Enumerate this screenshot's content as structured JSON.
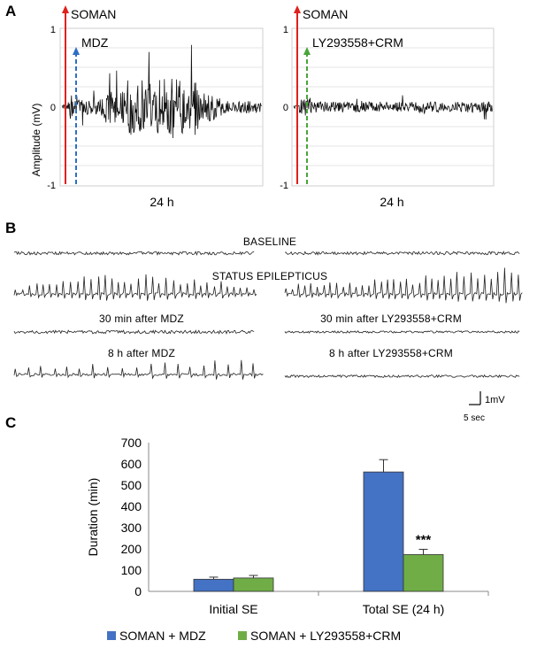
{
  "panels": {
    "a": {
      "letter": "A",
      "ylabel": "Amplitude (mV)",
      "left": {
        "agent": "SOMAN",
        "treatment": "MDZ",
        "time_label": "24 h",
        "treatment_color": "#2e6fc4"
      },
      "right": {
        "agent": "SOMAN",
        "treatment": "LY293558+CRM",
        "time_label": "24 h",
        "treatment_color": "#4aa43a"
      },
      "ticks": {
        "top": "1",
        "mid": "0",
        "bottom": "-1"
      },
      "soman_color": "#e0201c"
    },
    "b": {
      "letter": "B",
      "center_labels": {
        "baseline": "BASELINE",
        "se": "STATUS EPILEPTICUS"
      },
      "left_labels": {
        "post30": "30 min after MDZ",
        "post8h": "8 h after MDZ"
      },
      "right_labels": {
        "post30": "30 min after LY293558+CRM",
        "post8h": "8 h after LY293558+CRM"
      },
      "scale": {
        "amplitude": "1mV",
        "time": "5 sec"
      }
    },
    "c": {
      "letter": "C"
    }
  },
  "chart_data": {
    "type": "bar",
    "title": "",
    "xlabel": "",
    "ylabel": "Duration (min)",
    "ylim": [
      0,
      700
    ],
    "yticks": [
      "0",
      "100",
      "200",
      "300",
      "400",
      "500",
      "600",
      "700"
    ],
    "categories": [
      "Initial SE",
      "Total SE (24 h)"
    ],
    "series": [
      {
        "name": "SOMAN + MDZ",
        "color": "#4472c4",
        "values": [
          57,
          562
        ],
        "errors": [
          10,
          58
        ]
      },
      {
        "name": "SOMAN + LY293558+CRM",
        "color": "#70ad47",
        "values": [
          63,
          173
        ],
        "errors": [
          12,
          25
        ]
      }
    ],
    "annotations": [
      {
        "category": "Total SE (24 h)",
        "series": "SOMAN + LY293558+CRM",
        "text": "***"
      }
    ],
    "legend_position": "bottom"
  }
}
